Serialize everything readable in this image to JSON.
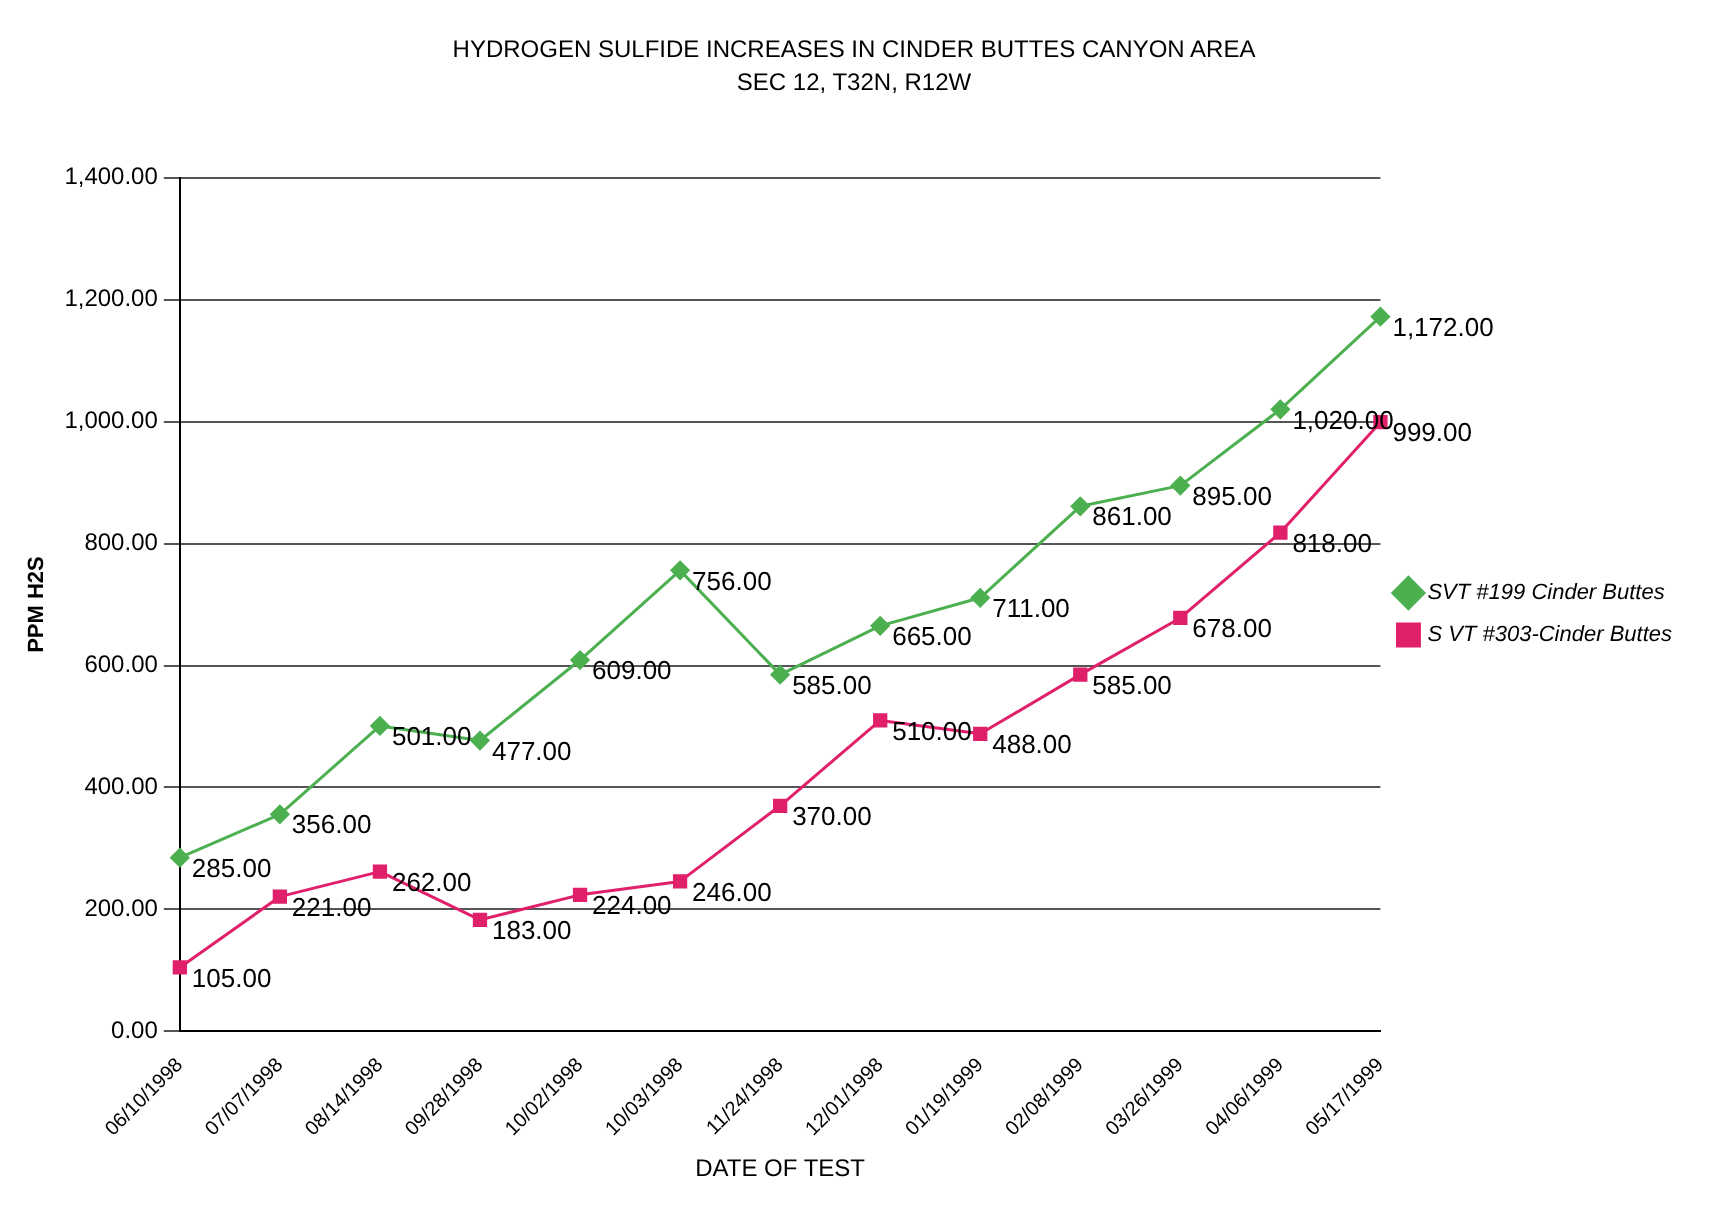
{
  "chart_data": {
    "type": "line",
    "title": "HYDROGEN SULFIDE INCREASES IN CINDER BUTTES CANYON AREA",
    "subtitle": "SEC 12, T32N, R12W",
    "xlabel": "DATE OF TEST",
    "ylabel": "PPM H2S",
    "categories": [
      "06/10/1998",
      "07/07/1998",
      "08/14/1998",
      "09/28/1998",
      "10/02/1998",
      "10/03/1998",
      "11/24/1998",
      "12/01/1998",
      "01/19/1999",
      "02/08/1999",
      "03/26/1999",
      "04/06/1999",
      "05/17/1999"
    ],
    "series": [
      {
        "name": "SVT #199 Cinder Buttes",
        "color": "#4caf50",
        "marker": "diamond",
        "values": [
          285,
          356,
          501,
          477,
          609,
          756,
          585,
          665,
          711,
          861,
          895,
          1020,
          1172
        ],
        "value_labels": [
          "285.00",
          "356.00",
          "501.00",
          "477.00",
          "609.00",
          "756.00",
          "585.00",
          "665.00",
          "711.00",
          "861.00",
          "895.00",
          "1,020.00",
          "1,172.00"
        ]
      },
      {
        "name": "S VT #303-Cinder Buttes",
        "color": "#e0206a",
        "marker": "square",
        "values": [
          105,
          221,
          262,
          183,
          224,
          246,
          370,
          510,
          488,
          585,
          678,
          818,
          999
        ],
        "value_labels": [
          "105.00",
          "221.00",
          "262.00",
          "183.00",
          "224.00",
          "246.00",
          "370.00",
          "510.00",
          "488.00",
          "585.00",
          "678.00",
          "818.00",
          "999.00"
        ]
      }
    ],
    "ylim": [
      0,
      1400
    ],
    "yticks": [
      {
        "value": 0,
        "label": "0.00"
      },
      {
        "value": 200,
        "label": "200.00"
      },
      {
        "value": 400,
        "label": "400.00"
      },
      {
        "value": 600,
        "label": "600.00"
      },
      {
        "value": 800,
        "label": "800.00"
      },
      {
        "value": 1000,
        "label": "1,000.00"
      },
      {
        "value": 1200,
        "label": "1,200.00"
      },
      {
        "value": 1400,
        "label": "1,400.00"
      }
    ],
    "grid": "y",
    "legend": "right",
    "line_style": "solid"
  }
}
